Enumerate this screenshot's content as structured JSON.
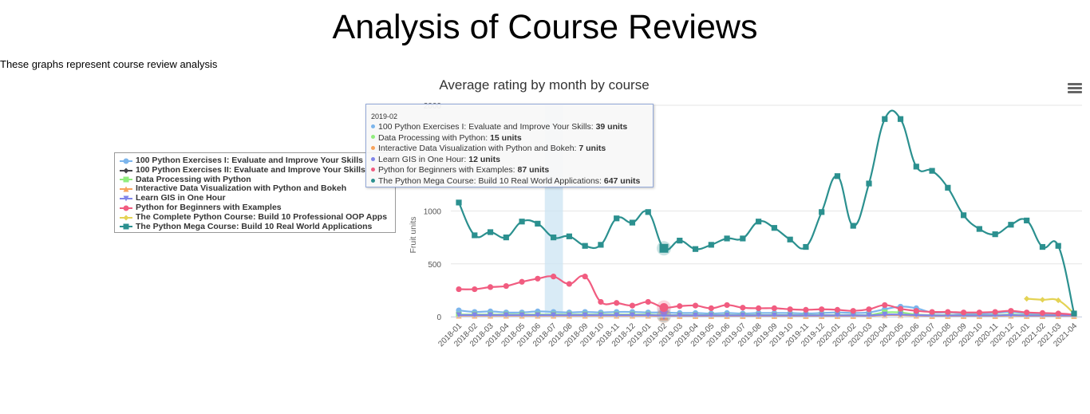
{
  "header": {
    "title": "Analysis of Course Reviews",
    "subtitle": "These graphs represent course review analysis"
  },
  "chart_data": {
    "type": "line",
    "title": "Average rating by month by course",
    "ylabel": "Fruit units",
    "xlabel": "",
    "ylim": [
      0,
      2000
    ],
    "yticks": [
      0,
      500,
      1000,
      2000
    ],
    "grid": true,
    "legend_position": "left",
    "categories": [
      "2018-01",
      "2018-02",
      "2018-03",
      "2018-04",
      "2018-05",
      "2018-06",
      "2018-07",
      "2018-08",
      "2018-09",
      "2018-10",
      "2018-11",
      "2018-12",
      "2019-01",
      "2019-02",
      "2019-03",
      "2019-04",
      "2019-05",
      "2019-06",
      "2019-07",
      "2019-08",
      "2019-09",
      "2019-10",
      "2019-11",
      "2019-12",
      "2020-01",
      "2020-02",
      "2020-03",
      "2020-04",
      "2020-05",
      "2020-06",
      "2020-07",
      "2020-08",
      "2020-09",
      "2020-10",
      "2020-11",
      "2020-12",
      "2021-01",
      "2021-02",
      "2021-03",
      "2021-04"
    ],
    "series": [
      {
        "name": "100 Python Exercises I: Evaluate and Improve Your Skills",
        "color": "#7cb5ec",
        "marker": "circle",
        "values": [
          60,
          45,
          50,
          40,
          40,
          50,
          45,
          40,
          45,
          40,
          45,
          45,
          40,
          39,
          35,
          35,
          30,
          35,
          30,
          35,
          35,
          35,
          30,
          35,
          40,
          35,
          40,
          70,
          95,
          80,
          40,
          40,
          30,
          30,
          35,
          45,
          30,
          25,
          25,
          20
        ]
      },
      {
        "name": "100 Python Exercises II: Evaluate and Improve Your Skills",
        "color": "#434348",
        "marker": "diamond",
        "values": [
          null,
          null,
          null,
          null,
          null,
          null,
          null,
          null,
          null,
          null,
          null,
          null,
          null,
          null,
          null,
          null,
          null,
          null,
          null,
          null,
          null,
          null,
          null,
          null,
          null,
          null,
          null,
          null,
          null,
          null,
          null,
          null,
          null,
          null,
          null,
          null,
          null,
          null,
          null,
          null
        ]
      },
      {
        "name": "Data Processing with Python",
        "color": "#90ed7d",
        "marker": "square",
        "values": [
          20,
          20,
          20,
          20,
          20,
          20,
          20,
          20,
          20,
          20,
          20,
          20,
          20,
          15,
          15,
          15,
          15,
          15,
          15,
          15,
          15,
          15,
          15,
          15,
          15,
          15,
          15,
          40,
          40,
          20,
          15,
          15,
          15,
          15,
          15,
          20,
          15,
          15,
          15,
          15
        ]
      },
      {
        "name": "Interactive Data Visualization with Python and Bokeh",
        "color": "#f7a35c",
        "marker": "triangle",
        "values": [
          10,
          10,
          10,
          10,
          10,
          10,
          10,
          10,
          10,
          10,
          10,
          10,
          10,
          7,
          7,
          7,
          7,
          7,
          7,
          7,
          7,
          7,
          7,
          7,
          7,
          7,
          7,
          15,
          15,
          10,
          7,
          7,
          7,
          7,
          7,
          10,
          7,
          7,
          7,
          7
        ]
      },
      {
        "name": "Learn GIS in One Hour",
        "color": "#8085e9",
        "marker": "triangle-down",
        "values": [
          15,
          15,
          15,
          15,
          15,
          15,
          15,
          15,
          15,
          15,
          15,
          15,
          15,
          12,
          12,
          12,
          12,
          12,
          12,
          12,
          12,
          12,
          12,
          12,
          12,
          12,
          12,
          20,
          20,
          15,
          12,
          12,
          12,
          12,
          12,
          15,
          12,
          12,
          12,
          12
        ]
      },
      {
        "name": "Python for Beginners with Examples",
        "color": "#f15c80",
        "marker": "circle",
        "values": [
          260,
          260,
          280,
          290,
          330,
          360,
          380,
          310,
          380,
          140,
          130,
          105,
          140,
          87,
          100,
          105,
          80,
          110,
          85,
          80,
          80,
          70,
          65,
          70,
          65,
          55,
          70,
          110,
          75,
          55,
          45,
          45,
          40,
          40,
          45,
          55,
          40,
          35,
          30,
          20
        ]
      },
      {
        "name": "The Complete Python Course: Build 10 Professional OOP Apps",
        "color": "#e4d354",
        "marker": "diamond",
        "values": [
          null,
          null,
          null,
          null,
          null,
          null,
          null,
          null,
          null,
          null,
          null,
          null,
          null,
          null,
          null,
          null,
          null,
          null,
          null,
          null,
          null,
          null,
          null,
          null,
          null,
          null,
          null,
          null,
          null,
          null,
          null,
          null,
          null,
          null,
          null,
          null,
          170,
          160,
          155,
          30
        ]
      },
      {
        "name": "The Python Mega Course: Build 10 Real World Applications",
        "color": "#2b908f",
        "marker": "square",
        "values": [
          1080,
          770,
          800,
          750,
          900,
          880,
          750,
          760,
          670,
          680,
          930,
          890,
          990,
          647,
          720,
          640,
          680,
          740,
          740,
          900,
          840,
          730,
          660,
          990,
          1330,
          860,
          1260,
          1870,
          1870,
          1420,
          1380,
          1220,
          960,
          830,
          780,
          870,
          910,
          660,
          670,
          30
        ]
      }
    ],
    "tooltip": {
      "date": "2019-02",
      "rows": [
        {
          "label": "100 Python Exercises I: Evaluate and Improve Your Skills: ",
          "value": "39 units",
          "color": "#7cb5ec"
        },
        {
          "label": "Data Processing with Python: ",
          "value": "15 units",
          "color": "#90ed7d"
        },
        {
          "label": "Interactive Data Visualization with Python and Bokeh: ",
          "value": "7 units",
          "color": "#f7a35c"
        },
        {
          "label": "Learn GIS in One Hour: ",
          "value": "12 units",
          "color": "#8085e9"
        },
        {
          "label": "Python for Beginners with Examples: ",
          "value": "87 units",
          "color": "#f15c80"
        },
        {
          "label": "The Python Mega Course: Build 10 Real World Applications: ",
          "value": "647 units",
          "color": "#2b908f"
        }
      ]
    },
    "highlight_band_category": "2018-07",
    "hover_category": "2019-02"
  }
}
